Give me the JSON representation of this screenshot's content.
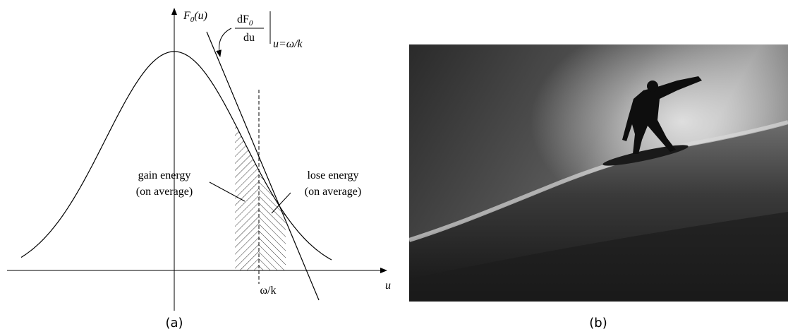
{
  "panel_a": {
    "caption": "(a)",
    "y_axis": {
      "symbol": "F",
      "subscript": "0",
      "argument": "(u)"
    },
    "derivative": {
      "numerator": "dF",
      "subscript": "0",
      "denominator": "du",
      "evaluated_at": "u=ω/k"
    },
    "gain_label": [
      "gain energy",
      "(on average)"
    ],
    "lose_label": [
      "lose energy",
      "(on average)"
    ],
    "x_tick": "ω/k",
    "x_axis": "u"
  },
  "panel_b": {
    "caption": "(b)"
  }
}
